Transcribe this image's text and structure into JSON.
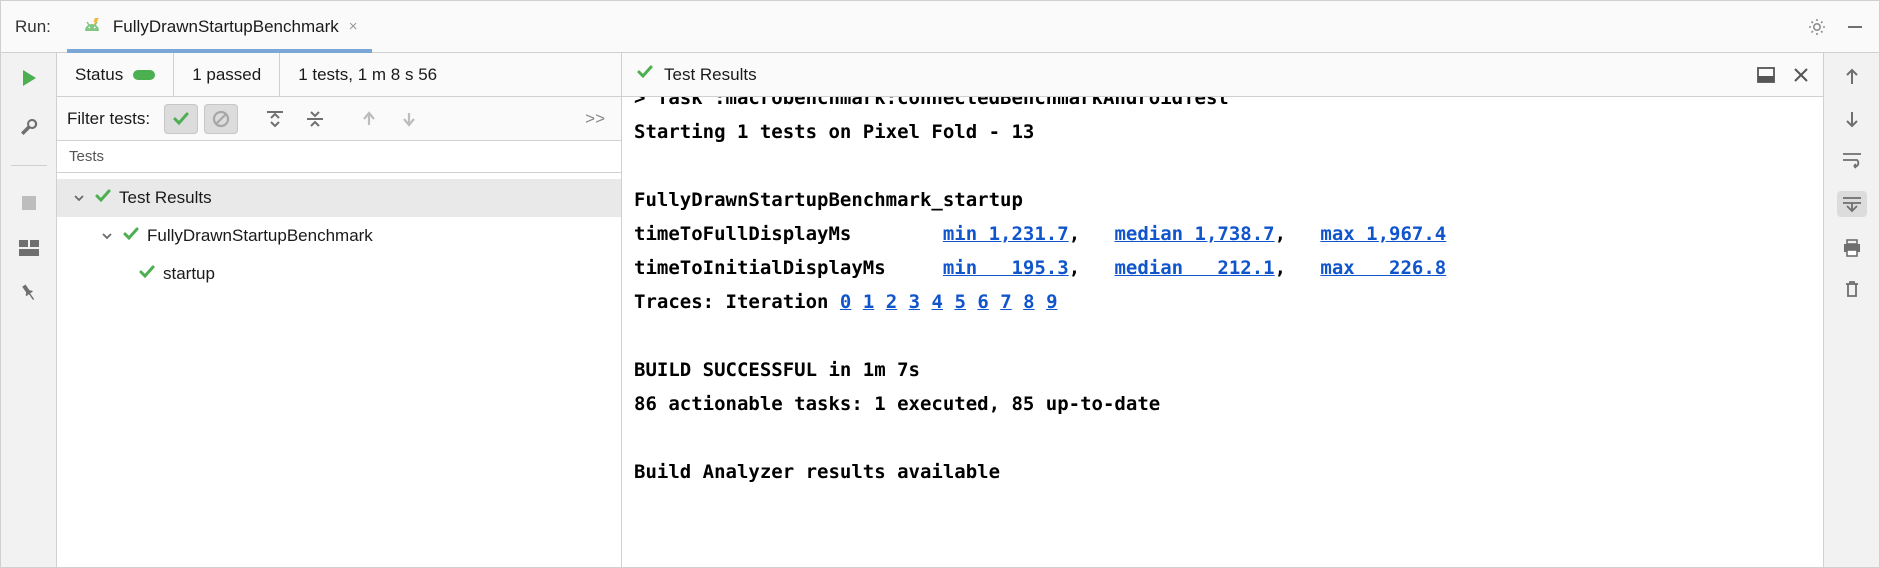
{
  "header": {
    "run_label": "Run:",
    "tab_title": "FullyDrawnStartupBenchmark",
    "tab_close": "×"
  },
  "left_gutter": {
    "icons": [
      "play",
      "wrench",
      "stop",
      "layout",
      "pin"
    ]
  },
  "status": {
    "label": "Status",
    "passed_text": "1 passed",
    "summary": "1 tests, 1 m 8 s 56"
  },
  "filter": {
    "label": "Filter tests:",
    "more": ">>"
  },
  "tree": {
    "header": "Tests",
    "root": "Test Results",
    "suite": "FullyDrawnStartupBenchmark",
    "leaf": "startup"
  },
  "console": {
    "title": "Test Results",
    "lines": {
      "task": "> Task :macrobenchmark:connectedBenchmarkAndroidTest",
      "starting": "Starting 1 tests on Pixel Fold - 13",
      "blank1": "",
      "bench_name": "FullyDrawnStartupBenchmark_startup",
      "m1_label": "timeToFullDisplayMs",
      "m1_min": "min 1,231.7",
      "m1_med": "median 1,738.7",
      "m1_max": "max 1,967.4",
      "m2_label": "timeToInitialDisplayMs",
      "m2_min": "min   195.3",
      "m2_med": "median   212.1",
      "m2_max": "max   226.8",
      "traces_label": "Traces: Iteration",
      "traces": [
        "0",
        "1",
        "2",
        "3",
        "4",
        "5",
        "6",
        "7",
        "8",
        "9"
      ],
      "blank2": "",
      "build_ok": "BUILD SUCCESSFUL in 1m 7s",
      "tasks": "86 actionable tasks: 1 executed, 85 up-to-date",
      "blank3": "",
      "analyzer": "Build Analyzer results available"
    }
  },
  "colors": {
    "green": "#4caf50",
    "link": "#1155cc",
    "border": "#d0d0d0",
    "panel_bg": "#fafafa",
    "selected_row": "#e9e9e9",
    "icon_gray": "#6f6f6f"
  }
}
